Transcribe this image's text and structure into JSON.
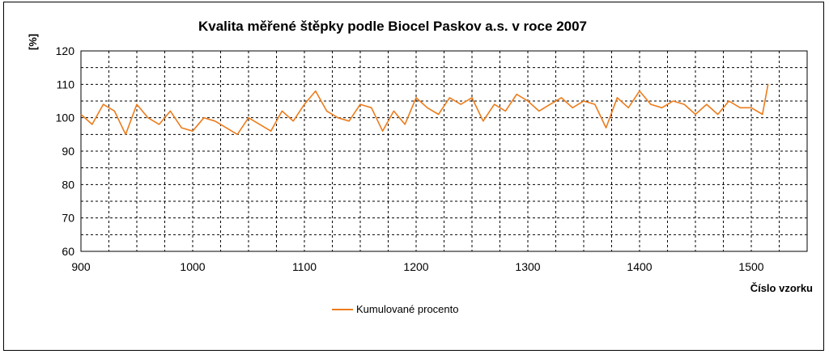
{
  "chart_data": {
    "type": "line",
    "title": "Kvalita měřené štěpky podle Biocel Paskov a.s. v roce 2007",
    "xlabel": "Číslo vzorku",
    "ylabel": "[%]",
    "xlim": [
      900,
      1550
    ],
    "ylim": [
      60,
      120
    ],
    "x_ticks": [
      900,
      1000,
      1100,
      1200,
      1300,
      1400,
      1500
    ],
    "y_ticks": [
      60,
      70,
      80,
      90,
      100,
      110,
      120
    ],
    "grid": true,
    "legend_position": "bottom",
    "series": [
      {
        "name": "Kumulované procento",
        "color": "#ec7c1c",
        "x": [
          900,
          910,
          920,
          930,
          940,
          950,
          960,
          970,
          980,
          990,
          1000,
          1010,
          1020,
          1030,
          1040,
          1050,
          1060,
          1070,
          1080,
          1090,
          1100,
          1110,
          1120,
          1130,
          1140,
          1150,
          1160,
          1170,
          1180,
          1190,
          1200,
          1210,
          1220,
          1230,
          1240,
          1250,
          1260,
          1270,
          1280,
          1290,
          1300,
          1310,
          1320,
          1330,
          1340,
          1350,
          1360,
          1370,
          1380,
          1390,
          1400,
          1410,
          1420,
          1430,
          1440,
          1450,
          1460,
          1470,
          1480,
          1490,
          1500,
          1510,
          1515
        ],
        "values": [
          101,
          98,
          104,
          102,
          95,
          104,
          100,
          98,
          102,
          97,
          96,
          100,
          99,
          97,
          95,
          100,
          98,
          96,
          102,
          99,
          104,
          108,
          102,
          100,
          99,
          104,
          103,
          96,
          102,
          98,
          106,
          103,
          101,
          106,
          104,
          106,
          99,
          104,
          102,
          107,
          105,
          102,
          104,
          106,
          103,
          105,
          104,
          97,
          106,
          103,
          108,
          104,
          103,
          105,
          104,
          101,
          104,
          101,
          105,
          103,
          103,
          101,
          110
        ]
      }
    ]
  }
}
